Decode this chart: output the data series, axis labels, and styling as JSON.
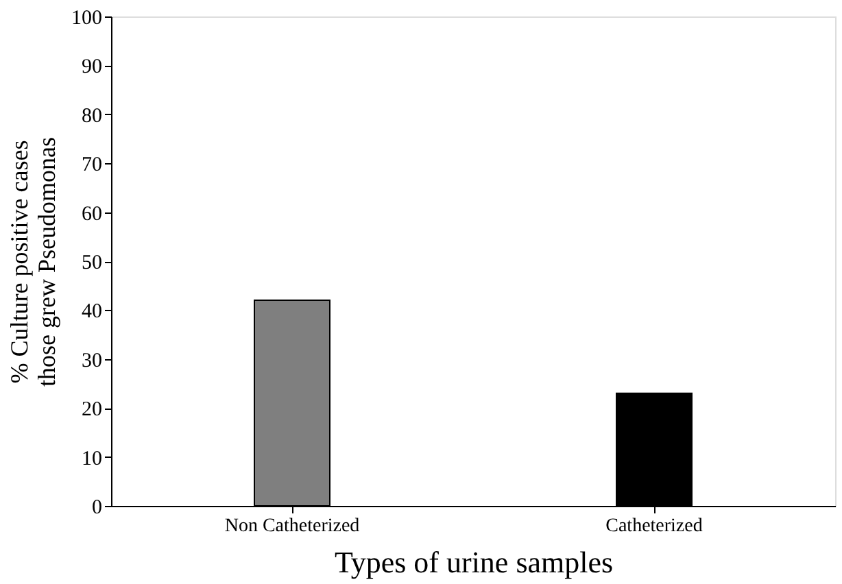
{
  "chart_data": {
    "type": "bar",
    "xlabel": "Types  of urine samples",
    "ylabel": "% Culture positive cases\nthose grew Pseudomonas",
    "categories": [
      "Non Catheterized",
      "Catheterized"
    ],
    "values": [
      42,
      23
    ],
    "colors": [
      "#7f7f7f",
      "#000000"
    ],
    "ylim": [
      0,
      100
    ],
    "yticks": [
      0,
      10,
      20,
      30,
      40,
      50,
      60,
      70,
      80,
      90,
      100
    ],
    "grid": false
  }
}
